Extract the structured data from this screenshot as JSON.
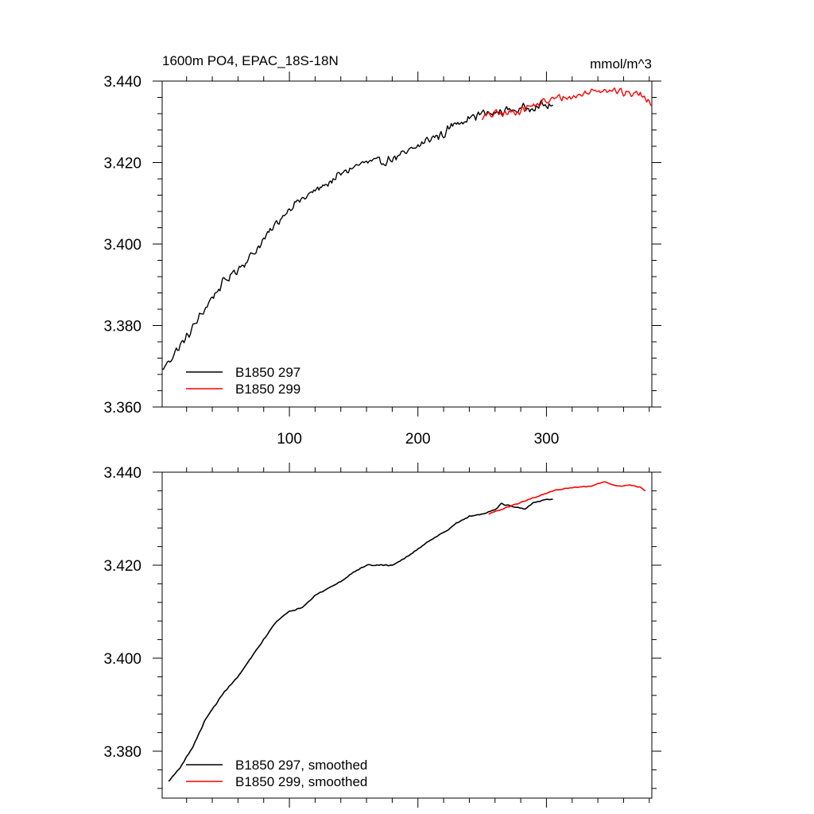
{
  "chart_data": [
    {
      "type": "line",
      "panel": "top",
      "title": "1600m PO4, EPAC_18S-18N",
      "units": "mmol/m^3",
      "xlabel": "",
      "ylabel": "",
      "xlim": [
        1,
        382
      ],
      "ylim": [
        3.36,
        3.44
      ],
      "yticks": [
        3.36,
        3.38,
        3.4,
        3.42,
        3.44
      ],
      "ytick_labels": [
        "3.360",
        "3.380",
        "3.400",
        "3.420",
        "3.440"
      ],
      "xticks": [
        100,
        200,
        300
      ],
      "xtick_labels": [
        "100",
        "200",
        "300"
      ],
      "legend_position": "bottom-left",
      "series": [
        {
          "name": "B1850 297",
          "color": "#000000",
          "x_start": 1,
          "x_end": 305,
          "anchors": [
            [
              1,
              3.369
            ],
            [
              10,
              3.373
            ],
            [
              20,
              3.377
            ],
            [
              30,
              3.382
            ],
            [
              40,
              3.387
            ],
            [
              50,
              3.391
            ],
            [
              60,
              3.394
            ],
            [
              70,
              3.397
            ],
            [
              80,
              3.401
            ],
            [
              90,
              3.405
            ],
            [
              100,
              3.409
            ],
            [
              110,
              3.411
            ],
            [
              120,
              3.413
            ],
            [
              130,
              3.415
            ],
            [
              140,
              3.417
            ],
            [
              150,
              3.419
            ],
            [
              160,
              3.42
            ],
            [
              170,
              3.42
            ],
            [
              180,
              3.421
            ],
            [
              190,
              3.422
            ],
            [
              200,
              3.424
            ],
            [
              210,
              3.426
            ],
            [
              220,
              3.427
            ],
            [
              230,
              3.43
            ],
            [
              240,
              3.431
            ],
            [
              250,
              3.432
            ],
            [
              260,
              3.432
            ],
            [
              270,
              3.433
            ],
            [
              280,
              3.433
            ],
            [
              290,
              3.434
            ],
            [
              305,
              3.434
            ]
          ],
          "noise": 0.0014
        },
        {
          "name": "B1850 299",
          "color": "#ff0000",
          "x_start": 250,
          "x_end": 382,
          "anchors": [
            [
              250,
              3.431
            ],
            [
              260,
              3.432
            ],
            [
              270,
              3.432
            ],
            [
              280,
              3.433
            ],
            [
              290,
              3.434
            ],
            [
              300,
              3.435
            ],
            [
              310,
              3.436
            ],
            [
              320,
              3.436
            ],
            [
              330,
              3.437
            ],
            [
              340,
              3.438
            ],
            [
              350,
              3.438
            ],
            [
              360,
              3.437
            ],
            [
              370,
              3.437
            ],
            [
              382,
              3.435
            ]
          ],
          "noise": 0.0012
        }
      ]
    },
    {
      "type": "line",
      "panel": "bottom",
      "title": "",
      "xlabel": "",
      "ylabel": "",
      "xlim": [
        1,
        382
      ],
      "ylim": [
        3.37,
        3.44
      ],
      "yticks": [
        3.38,
        3.4,
        3.42,
        3.44
      ],
      "ytick_labels": [
        "3.380",
        "3.400",
        "3.420",
        "3.440"
      ],
      "legend_position": "bottom-left",
      "series": [
        {
          "name": "B1850 297, smoothed",
          "color": "#000000",
          "x_start": 6,
          "x_end": 305,
          "anchors": [
            [
              6,
              3.3735
            ],
            [
              15,
              3.3765
            ],
            [
              25,
              3.381
            ],
            [
              35,
              3.387
            ],
            [
              50,
              3.393
            ],
            [
              60,
              3.396
            ],
            [
              70,
              3.4
            ],
            [
              80,
              3.404
            ],
            [
              90,
              3.408
            ],
            [
              100,
              3.41
            ],
            [
              110,
              3.411
            ],
            [
              120,
              3.4135
            ],
            [
              130,
              3.415
            ],
            [
              140,
              3.4165
            ],
            [
              150,
              3.4185
            ],
            [
              160,
              3.42
            ],
            [
              170,
              3.42
            ],
            [
              180,
              3.42
            ],
            [
              190,
              3.4215
            ],
            [
              200,
              3.4235
            ],
            [
              210,
              3.4255
            ],
            [
              220,
              3.427
            ],
            [
              230,
              3.429
            ],
            [
              240,
              3.4305
            ],
            [
              250,
              3.431
            ],
            [
              260,
              3.432
            ],
            [
              265,
              3.4332
            ],
            [
              275,
              3.4325
            ],
            [
              283,
              3.432
            ],
            [
              290,
              3.4335
            ],
            [
              305,
              3.4343
            ]
          ],
          "noise": 0.00015
        },
        {
          "name": "B1850 299, smoothed",
          "color": "#ff0000",
          "x_start": 255,
          "x_end": 377,
          "anchors": [
            [
              255,
              3.431
            ],
            [
              265,
              3.432
            ],
            [
              275,
              3.433
            ],
            [
              290,
              3.4345
            ],
            [
              305,
              3.436
            ],
            [
              320,
              3.4367
            ],
            [
              335,
              3.437
            ],
            [
              345,
              3.438
            ],
            [
              355,
              3.437
            ],
            [
              365,
              3.4372
            ],
            [
              373,
              3.4368
            ],
            [
              377,
              3.436
            ]
          ],
          "noise": 0.0001
        }
      ]
    }
  ]
}
